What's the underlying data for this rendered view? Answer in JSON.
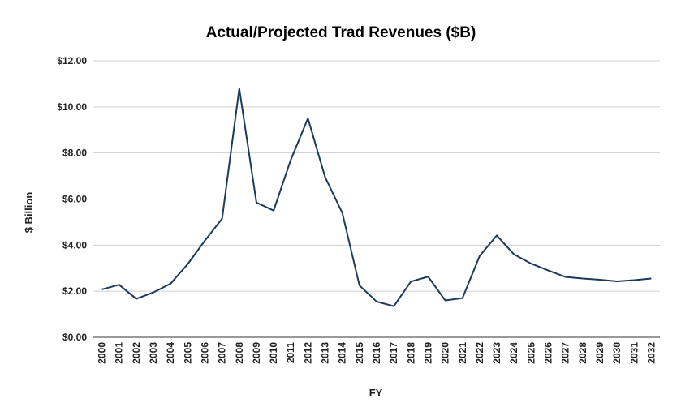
{
  "chart_data": {
    "type": "line",
    "title": "Actual/Projected Trad Revenues ($B)",
    "xlabel": "FY",
    "ylabel": "$ Billion",
    "ylim": [
      0,
      12
    ],
    "y_ticks": [
      "$0.00",
      "$2.00",
      "$4.00",
      "$6.00",
      "$8.00",
      "$10.00",
      "$12.00"
    ],
    "y_tick_values": [
      0,
      2,
      4,
      6,
      8,
      10,
      12
    ],
    "grid": true,
    "legend": "none",
    "categories": [
      "2000",
      "2001",
      "2002",
      "2003",
      "2004",
      "2005",
      "2006",
      "2007",
      "2008",
      "2009",
      "2010",
      "2011",
      "2012",
      "2013",
      "2014",
      "2015",
      "2016",
      "2017",
      "2018",
      "2019",
      "2020",
      "2021",
      "2022",
      "2023",
      "2024",
      "2025",
      "2026",
      "2027",
      "2028",
      "2029",
      "2030",
      "2031",
      "2032"
    ],
    "series": [
      {
        "color": "#1b3a5c",
        "values": [
          2.08,
          2.28,
          1.67,
          1.95,
          2.33,
          3.18,
          4.2,
          5.15,
          10.8,
          5.85,
          5.5,
          7.7,
          9.5,
          6.95,
          5.4,
          2.25,
          1.55,
          1.35,
          2.42,
          2.63,
          1.6,
          1.7,
          3.53,
          4.42,
          3.6,
          3.2,
          2.9,
          2.62,
          2.55,
          2.5,
          2.43,
          2.48,
          2.55
        ]
      }
    ]
  }
}
